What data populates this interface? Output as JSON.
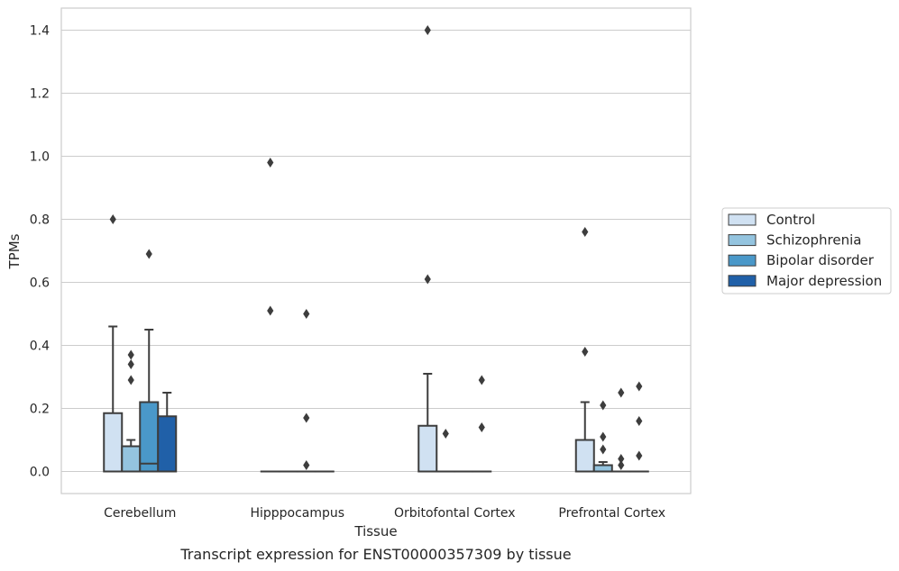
{
  "caption": "Transcript expression for ENST00000357309 by tissue",
  "chart_data": {
    "type": "box",
    "xlabel": "Tissue",
    "ylabel": "TPMs",
    "ylim": [
      -0.07,
      1.47
    ],
    "yticks": [
      0.0,
      0.2,
      0.4,
      0.6,
      0.8,
      1.0,
      1.2,
      1.4
    ],
    "ytick_labels": [
      "0.0",
      "0.2",
      "0.4",
      "0.6",
      "0.8",
      "1.0",
      "1.2",
      "1.4"
    ],
    "grid": "horizontal",
    "legend_position": "right",
    "categories": [
      "Cerebellum",
      "Hipppocampus",
      "Orbitofontal Cortex",
      "Prefrontal Cortex"
    ],
    "series": [
      {
        "name": "Control",
        "color": "#d0e1f2",
        "boxes": [
          {
            "q1": 0.0,
            "median": 0.0,
            "q3": 0.185,
            "whisker_low": 0.0,
            "whisker_high": 0.46,
            "outliers": [
              0.8
            ]
          },
          {
            "q1": 0.0,
            "median": 0.0,
            "q3": 0.0,
            "whisker_low": 0.0,
            "whisker_high": 0.0,
            "outliers": [
              0.51,
              0.98
            ]
          },
          {
            "q1": 0.0,
            "median": 0.0,
            "q3": 0.145,
            "whisker_low": 0.0,
            "whisker_high": 0.31,
            "outliers": [
              0.61,
              1.4
            ]
          },
          {
            "q1": 0.0,
            "median": 0.0,
            "q3": 0.1,
            "whisker_low": 0.0,
            "whisker_high": 0.22,
            "outliers": [
              0.38,
              0.76
            ]
          }
        ]
      },
      {
        "name": "Schizophrenia",
        "color": "#94c4df",
        "boxes": [
          {
            "q1": 0.0,
            "median": 0.0,
            "q3": 0.08,
            "whisker_low": 0.0,
            "whisker_high": 0.1,
            "outliers": [
              0.29,
              0.34,
              0.37
            ]
          },
          {
            "q1": 0.0,
            "median": 0.0,
            "q3": 0.0,
            "whisker_low": 0.0,
            "whisker_high": 0.0,
            "outliers": []
          },
          {
            "q1": 0.0,
            "median": 0.0,
            "q3": 0.0,
            "whisker_low": 0.0,
            "whisker_high": 0.0,
            "outliers": [
              0.12
            ]
          },
          {
            "q1": 0.0,
            "median": 0.0,
            "q3": 0.02,
            "whisker_low": 0.0,
            "whisker_high": 0.03,
            "outliers": [
              0.07,
              0.11,
              0.21
            ]
          }
        ]
      },
      {
        "name": "Bipolar disorder",
        "color": "#4a98c9",
        "boxes": [
          {
            "q1": 0.0,
            "median": 0.025,
            "q3": 0.22,
            "whisker_low": 0.0,
            "whisker_high": 0.45,
            "outliers": [
              0.69
            ]
          },
          {
            "q1": 0.0,
            "median": 0.0,
            "q3": 0.0,
            "whisker_low": 0.0,
            "whisker_high": 0.0,
            "outliers": [
              0.02,
              0.17,
              0.5
            ]
          },
          {
            "q1": 0.0,
            "median": 0.0,
            "q3": 0.0,
            "whisker_low": 0.0,
            "whisker_high": 0.0,
            "outliers": []
          },
          {
            "q1": 0.0,
            "median": 0.0,
            "q3": 0.0,
            "whisker_low": 0.0,
            "whisker_high": 0.0,
            "outliers": [
              0.02,
              0.04,
              0.25
            ]
          }
        ]
      },
      {
        "name": "Major depression",
        "color": "#2060a8",
        "boxes": [
          {
            "q1": 0.0,
            "median": 0.0,
            "q3": 0.175,
            "whisker_low": 0.0,
            "whisker_high": 0.25,
            "outliers": []
          },
          {
            "q1": 0.0,
            "median": 0.0,
            "q3": 0.0,
            "whisker_low": 0.0,
            "whisker_high": 0.0,
            "outliers": []
          },
          {
            "q1": 0.0,
            "median": 0.0,
            "q3": 0.0,
            "whisker_low": 0.0,
            "whisker_high": 0.0,
            "outliers": [
              0.14,
              0.29
            ]
          },
          {
            "q1": 0.0,
            "median": 0.0,
            "q3": 0.0,
            "whisker_low": 0.0,
            "whisker_high": 0.0,
            "outliers": [
              0.05,
              0.16,
              0.27
            ]
          }
        ]
      }
    ],
    "colors": {
      "grid": "#cccccc",
      "frame": "#cccccc",
      "box_edge": "#3d3d3d",
      "background": "#ffffff"
    }
  }
}
